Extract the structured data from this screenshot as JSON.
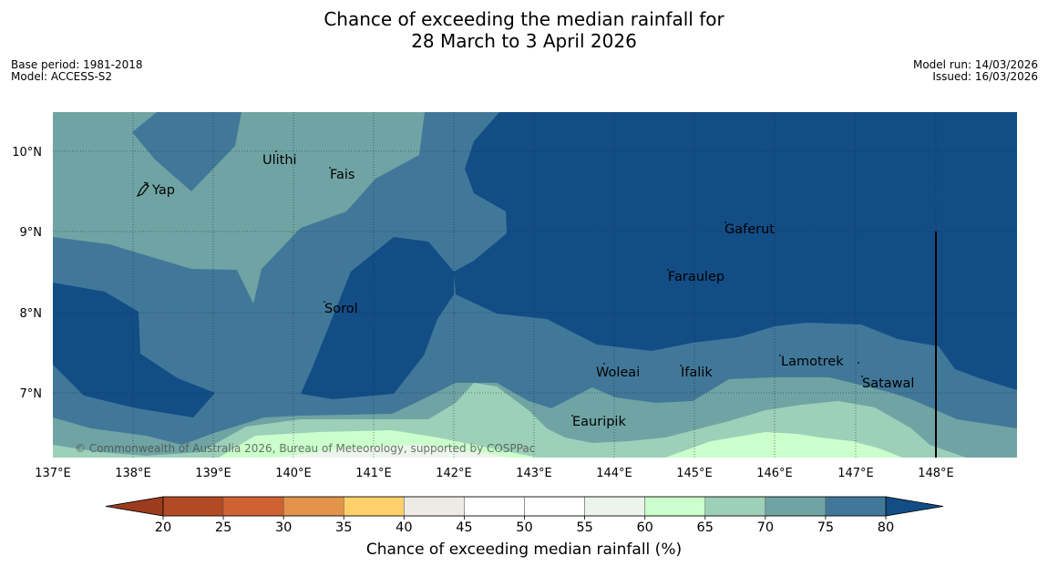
{
  "title": {
    "line1": "Chance of exceeding the median rainfall for",
    "line2": "28 March to 3 April 2026"
  },
  "meta_left": {
    "base_period": "Base period: 1981-2018",
    "model": "Model: ACCESS-S2"
  },
  "meta_right": {
    "model_run": "Model run: 14/03/2026",
    "issued": "Issued: 16/03/2026"
  },
  "map": {
    "lat_labels": [
      "10°N",
      "9°N",
      "8°N",
      "7°N"
    ],
    "lon_labels": [
      "137°E",
      "138°E",
      "139°E",
      "140°E",
      "141°E",
      "142°E",
      "143°E",
      "144°E",
      "145°E",
      "146°E",
      "147°E",
      "148°E"
    ],
    "places": [
      {
        "name": "Yap"
      },
      {
        "name": "Ulithi"
      },
      {
        "name": "Fais"
      },
      {
        "name": "Gaferut"
      },
      {
        "name": "Faraulep"
      },
      {
        "name": "Sorol"
      },
      {
        "name": "Lamotrek"
      },
      {
        "name": "Woleai"
      },
      {
        "name": "Ifalik"
      },
      {
        "name": "Satawal"
      },
      {
        "name": "Eauripik"
      }
    ],
    "copyright": "© Commonwealth of Australia 2026, Bureau of Meteorology, supported by COSPPac"
  },
  "colorbar": {
    "label": "Chance of exceeding median rainfall (%)",
    "ticks": [
      "20",
      "25",
      "30",
      "35",
      "40",
      "45",
      "50",
      "55",
      "60",
      "65",
      "70",
      "75",
      "80"
    ],
    "colors": [
      "#b24a26",
      "#cf6232",
      "#e3934a",
      "#fdd06a",
      "#eeebe4",
      "#ffffff",
      "#ffffff",
      "#ecf5ec",
      "#cbffcb",
      "#9dd0b9",
      "#70a4a4",
      "#417899"
    ],
    "low_color": "#9c3b1d",
    "high_color": "#124d86"
  }
}
